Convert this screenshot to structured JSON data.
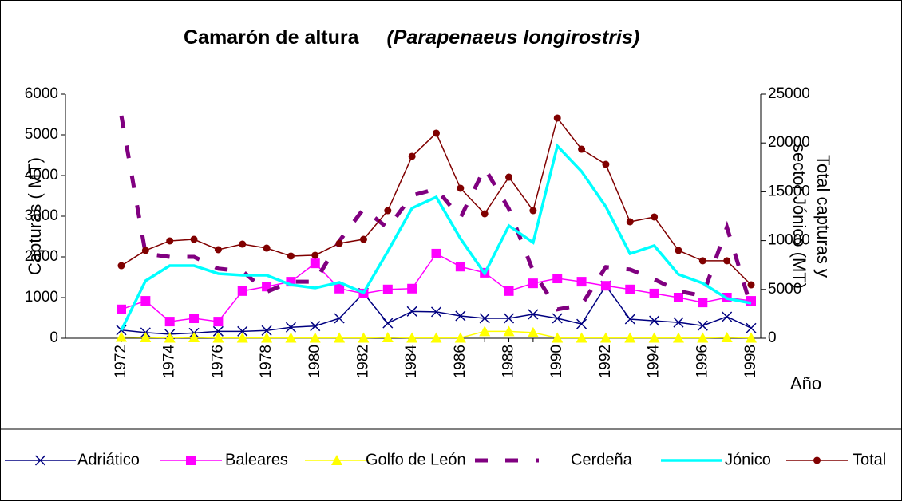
{
  "chart_data": {
    "type": "line",
    "title": "Camarón de altura",
    "subtitle": "(Parapenaeus longirostris)",
    "ylabel": "Capturas ( MT)",
    "y2label": [
      "Total capturas y",
      "sector Jónico (MT)"
    ],
    "xlabel": "Año",
    "categories": [
      "1972",
      null,
      "1974",
      null,
      "1976",
      null,
      "1978",
      null,
      "1980",
      null,
      "1982",
      null,
      "1984",
      null,
      "1986",
      null,
      "1988",
      null,
      "1990",
      null,
      "1992",
      null,
      "1994",
      null,
      "1996",
      null,
      "1998"
    ],
    "ylim": [
      0,
      6000
    ],
    "yticks": [
      0,
      1000,
      2000,
      3000,
      4000,
      5000,
      6000
    ],
    "y2lim": [
      0,
      25000
    ],
    "y2ticks": [
      0,
      5000,
      10000,
      15000,
      20000,
      25000
    ],
    "legend": "bottom",
    "series": [
      {
        "name": "Adriático",
        "color": "#000080",
        "marker": "x",
        "axis": "y",
        "values": [
          200,
          140,
          100,
          130,
          170,
          170,
          190,
          270,
          300,
          490,
          1110,
          370,
          660,
          650,
          550,
          490,
          490,
          590,
          490,
          350,
          1290,
          470,
          430,
          390,
          310,
          530,
          250
        ]
      },
      {
        "name": "Baleares",
        "color": "#ff00ff",
        "marker": "square",
        "axis": "y",
        "values": [
          710,
          920,
          410,
          490,
          410,
          1160,
          1270,
          1390,
          1840,
          1220,
          1100,
          1200,
          1220,
          2080,
          1760,
          1610,
          1160,
          1350,
          1470,
          1390,
          1290,
          1200,
          1100,
          1000,
          880,
          1000,
          920
        ]
      },
      {
        "name": "Golfo de León",
        "color": "#ffff00",
        "marker": "triangle",
        "axis": "y",
        "values": [
          30,
          20,
          10,
          20,
          10,
          10,
          10,
          10,
          10,
          10,
          10,
          20,
          10,
          10,
          10,
          170,
          170,
          140,
          10,
          10,
          10,
          10,
          10,
          10,
          10,
          20,
          10
        ]
      },
      {
        "name": "Cerdeña",
        "color": "#800080",
        "marker": "none",
        "dashed": true,
        "axis": "y",
        "values": [
          5470,
          2080,
          2000,
          2000,
          1710,
          1650,
          1140,
          1390,
          1390,
          2390,
          3180,
          2710,
          3510,
          3670,
          2960,
          4180,
          3180,
          1650,
          710,
          820,
          1750,
          1690,
          1450,
          1160,
          1040,
          2730,
          760
        ]
      },
      {
        "name": "Jónico",
        "color": "#00ffff",
        "marker": "none",
        "axis": "y2",
        "values": [
          820,
          5880,
          7430,
          7430,
          6620,
          6450,
          6450,
          5470,
          5150,
          5720,
          4660,
          8900,
          13320,
          14460,
          10210,
          6620,
          11520,
          9800,
          19690,
          17080,
          13480,
          8660,
          9480,
          6540,
          5640,
          4080,
          3590
        ]
      },
      {
        "name": "Total",
        "color": "#800000",
        "marker": "circle",
        "axis": "y2",
        "values": [
          7430,
          8990,
          9970,
          10130,
          9070,
          9640,
          9230,
          8420,
          8500,
          9720,
          10130,
          13070,
          18630,
          21000,
          15360,
          12750,
          16500,
          13070,
          22550,
          19360,
          17810,
          11930,
          12420,
          8990,
          7930,
          7930,
          5470
        ]
      }
    ]
  }
}
